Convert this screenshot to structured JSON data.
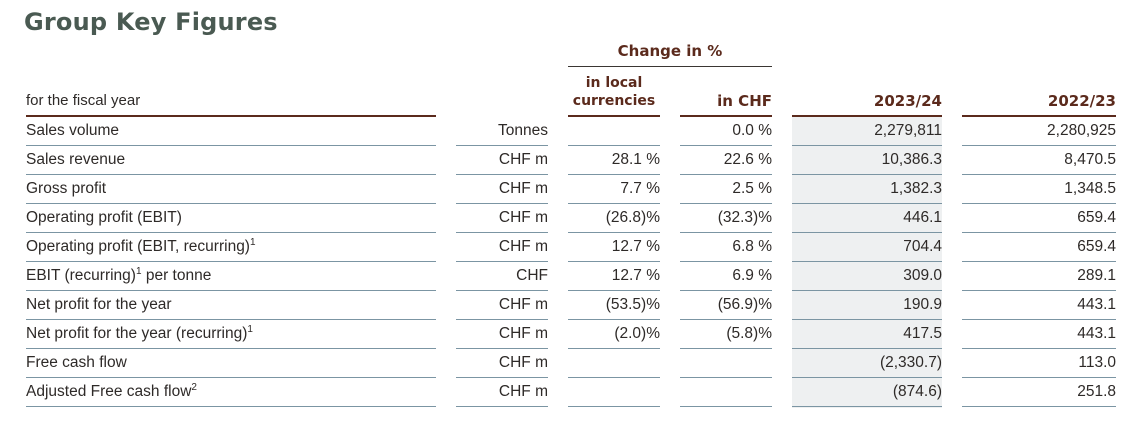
{
  "title": "Group Key Figures",
  "header": {
    "group": "Change in %",
    "label_col": "for the fiscal year",
    "local_line1": "in local",
    "local_line2": "currencies",
    "chf": "in CHF",
    "year1": "2023/24",
    "year2": "2022/23"
  },
  "rows": [
    {
      "label": "Sales volume",
      "sup": "",
      "label_tail": "",
      "unit": "Tonnes",
      "local": "",
      "chf": "0.0 %",
      "y1": "2,279,811",
      "y2": "2,280,925"
    },
    {
      "label": "Sales revenue",
      "sup": "",
      "label_tail": "",
      "unit": "CHF m",
      "local": "28.1 %",
      "chf": "22.6 %",
      "y1": "10,386.3",
      "y2": "8,470.5"
    },
    {
      "label": "Gross profit",
      "sup": "",
      "label_tail": "",
      "unit": "CHF m",
      "local": "7.7 %",
      "chf": "2.5 %",
      "y1": "1,382.3",
      "y2": "1,348.5"
    },
    {
      "label": "Operating profit (EBIT)",
      "sup": "",
      "label_tail": "",
      "unit": "CHF m",
      "local": "(26.8)%",
      "chf": "(32.3)%",
      "y1": "446.1",
      "y2": "659.4"
    },
    {
      "label": "Operating profit (EBIT, recurring)",
      "sup": "1",
      "label_tail": "",
      "unit": "CHF m",
      "local": "12.7 %",
      "chf": "6.8 %",
      "y1": "704.4",
      "y2": "659.4"
    },
    {
      "label": "EBIT (recurring)",
      "sup": "1",
      "label_tail": " per tonne",
      "unit": "CHF",
      "local": "12.7 %",
      "chf": "6.9 %",
      "y1": "309.0",
      "y2": "289.1"
    },
    {
      "label": "Net profit for the year",
      "sup": "",
      "label_tail": "",
      "unit": "CHF m",
      "local": "(53.5)%",
      "chf": "(56.9)%",
      "y1": "190.9",
      "y2": "443.1"
    },
    {
      "label": "Net profit for the year (recurring)",
      "sup": "1",
      "label_tail": "",
      "unit": "CHF m",
      "local": "(2.0)%",
      "chf": "(5.8)%",
      "y1": "417.5",
      "y2": "443.1"
    },
    {
      "label": "Free cash flow",
      "sup": "",
      "label_tail": "",
      "unit": "CHF m",
      "local": "",
      "chf": "",
      "y1": "(2,330.7)",
      "y2": "113.0"
    },
    {
      "label": "Adjusted Free cash flow",
      "sup": "2",
      "label_tail": "",
      "unit": "CHF m",
      "local": "",
      "chf": "",
      "y1": "(874.6)",
      "y2": "251.8"
    }
  ]
}
